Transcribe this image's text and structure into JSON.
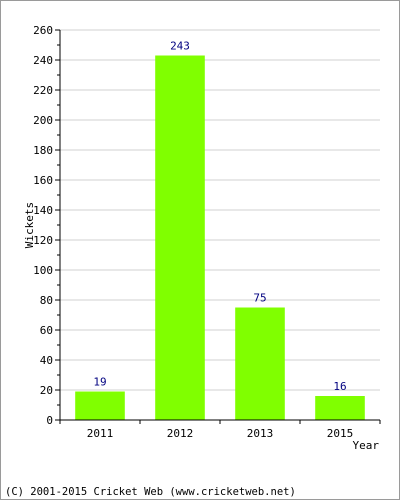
{
  "chart_data": {
    "type": "bar",
    "categories": [
      "2011",
      "2012",
      "2013",
      "2015"
    ],
    "values": [
      19,
      243,
      75,
      16
    ],
    "data_labels": [
      "19",
      "243",
      "75",
      "16"
    ],
    "xlabel": "Year",
    "ylabel": "Wickets",
    "ylim": [
      0,
      260
    ],
    "yticks": [
      0,
      20,
      40,
      60,
      80,
      100,
      120,
      140,
      160,
      180,
      200,
      220,
      240,
      260
    ],
    "grid": true,
    "bar_color": "#80ff00",
    "data_label_color": "#000080",
    "grid_color": "#d0d0d0"
  },
  "footer": {
    "copyright": "(C) 2001-2015 Cricket Web (www.cricketweb.net)"
  }
}
